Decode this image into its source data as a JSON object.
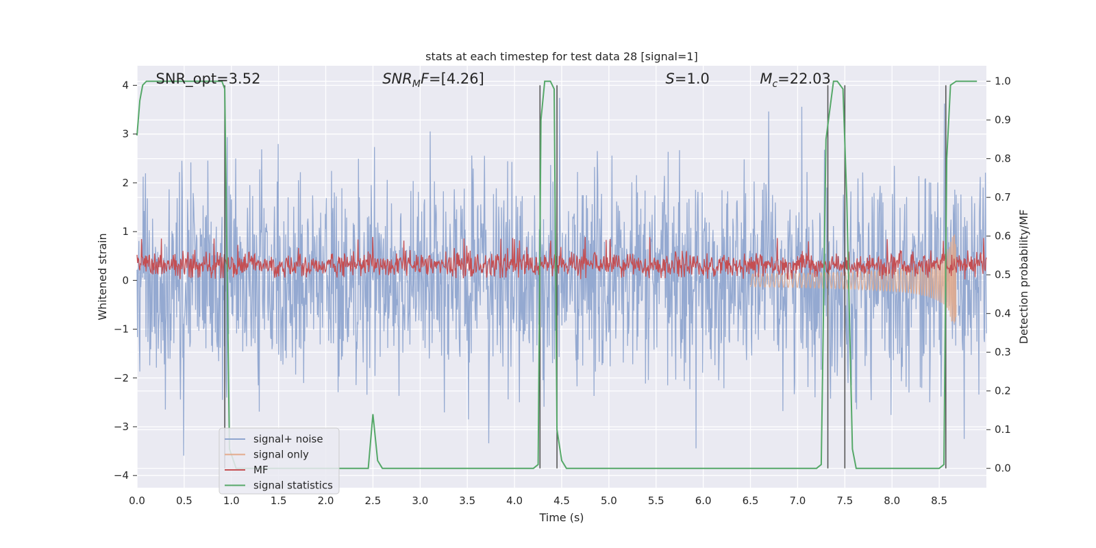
{
  "chart_data": {
    "type": "line",
    "title": "stats at each timestep for test data 28 [signal=1]",
    "xlabel": "Time (s)",
    "ylabel_left": "Whitened strain",
    "ylabel_right": "Detection probability/MF",
    "xlim": [
      0.0,
      9.0
    ],
    "ylim_left": [
      -4.25,
      4.4
    ],
    "ylim_right": [
      -0.05,
      1.04
    ],
    "xticks": [
      "0.0",
      "0.5",
      "1.0",
      "1.5",
      "2.0",
      "2.5",
      "3.0",
      "3.5",
      "4.0",
      "4.5",
      "5.0",
      "5.5",
      "6.0",
      "6.5",
      "7.0",
      "7.5",
      "8.0",
      "8.5"
    ],
    "yticks_left": [
      "4",
      "3",
      "2",
      "1",
      "0",
      "−1",
      "−2",
      "−3",
      "−4"
    ],
    "yticks_right": [
      "1.0",
      "0.9",
      "0.8",
      "0.7",
      "0.6",
      "0.5",
      "0.4",
      "0.3",
      "0.2",
      "0.1",
      "0.0"
    ],
    "grid": true,
    "legend_placement": "lower-left",
    "annotations": [
      {
        "text": "SNR_opt=3.52",
        "x": 0.2
      },
      {
        "text": "SNR",
        "sub": "M",
        "rest": "F=[4.26]",
        "x": 2.6
      },
      {
        "text": "S",
        "rest": "=1.0",
        "x": 5.6
      },
      {
        "text": "M",
        "sub": "c",
        "rest": "=22.03",
        "x": 6.6
      }
    ],
    "series": [
      {
        "name": "signal+ noise",
        "color": "#8fa5cf",
        "description_axis": "left",
        "approx_range": [
          -3.6,
          4.0
        ]
      },
      {
        "name": "signal only",
        "color": "#e3a98a",
        "description_axis": "left"
      },
      {
        "name": "MF",
        "color": "#c44e52",
        "description_axis": "left",
        "approx_range": [
          0.0,
          0.9
        ]
      },
      {
        "name": "signal statistics",
        "color": "#55a868",
        "description_axis": "right",
        "x": [
          0.0,
          0.03,
          0.06,
          0.1,
          0.15,
          0.2,
          0.85,
          0.9,
          0.93,
          0.98,
          1.05,
          2.4,
          2.45,
          2.5,
          2.55,
          2.6,
          2.65,
          4.2,
          4.25,
          4.28,
          4.32,
          4.35,
          4.38,
          4.42,
          4.45,
          4.5,
          4.55,
          7.2,
          7.25,
          7.3,
          7.38,
          7.42,
          7.48,
          7.52,
          7.58,
          7.62,
          8.5,
          8.55,
          8.58,
          8.62,
          8.68,
          8.75,
          8.9
        ],
        "y": [
          0.86,
          0.95,
          0.99,
          1.0,
          1.0,
          1.0,
          1.0,
          1.0,
          0.98,
          0.05,
          0.0,
          0.0,
          0.0,
          0.14,
          0.02,
          0.0,
          0.0,
          0.0,
          0.01,
          0.9,
          1.0,
          1.0,
          1.0,
          0.98,
          0.1,
          0.02,
          0.0,
          0.0,
          0.01,
          0.85,
          1.0,
          1.0,
          0.98,
          0.7,
          0.05,
          0.0,
          0.0,
          0.01,
          0.8,
          0.99,
          1.0,
          1.0,
          1.0
        ]
      }
    ],
    "vertical_lines_x": [
      0.93,
      4.27,
      4.45,
      7.32,
      7.5,
      8.57
    ]
  }
}
